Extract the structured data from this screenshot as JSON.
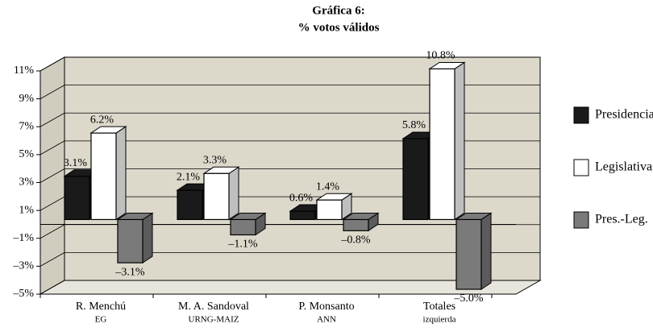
{
  "chart_data": {
    "type": "bar",
    "title": "Gráfica 6:",
    "subtitle": "% votos válidos",
    "categories": [
      [
        "R. Menchú",
        "EG"
      ],
      [
        "M. A. Sandoval",
        "URNG-MAIZ"
      ],
      [
        "P. Monsanto",
        "ANN"
      ],
      [
        "Totales",
        "izquierda"
      ]
    ],
    "series": [
      {
        "name": "Presidenciales",
        "color": "#1a1a1a",
        "values": [
          3.1,
          2.1,
          0.6,
          5.8
        ],
        "value_labels": [
          "3.1%",
          "2.1%",
          "0.6%",
          "5.8%"
        ]
      },
      {
        "name": "Legislativas",
        "color": "#ffffff",
        "values": [
          6.2,
          3.3,
          1.4,
          10.8
        ],
        "value_labels": [
          "6.2%",
          "3.3%",
          "1.4%",
          "10.8%"
        ]
      },
      {
        "name": "Pres.-Leg.",
        "color": "#7a7a7a",
        "values": [
          -3.1,
          -1.1,
          -0.8,
          -5.0
        ],
        "value_labels": [
          "–3.1%",
          "–1.1%",
          "–0.8%",
          "–5.0%"
        ]
      }
    ],
    "ylim": [
      -5,
      11
    ],
    "yticks": [
      {
        "value": -5,
        "label": "–5%"
      },
      {
        "value": -3,
        "label": "–3%"
      },
      {
        "value": -1,
        "label": "–1%"
      },
      {
        "value": 1,
        "label": "1%"
      },
      {
        "value": 3,
        "label": "3%"
      },
      {
        "value": 5,
        "label": "5%"
      },
      {
        "value": 7,
        "label": "7%"
      },
      {
        "value": 9,
        "label": "9%"
      },
      {
        "value": 11,
        "label": "11%"
      }
    ],
    "grid": true,
    "legend": "right"
  }
}
